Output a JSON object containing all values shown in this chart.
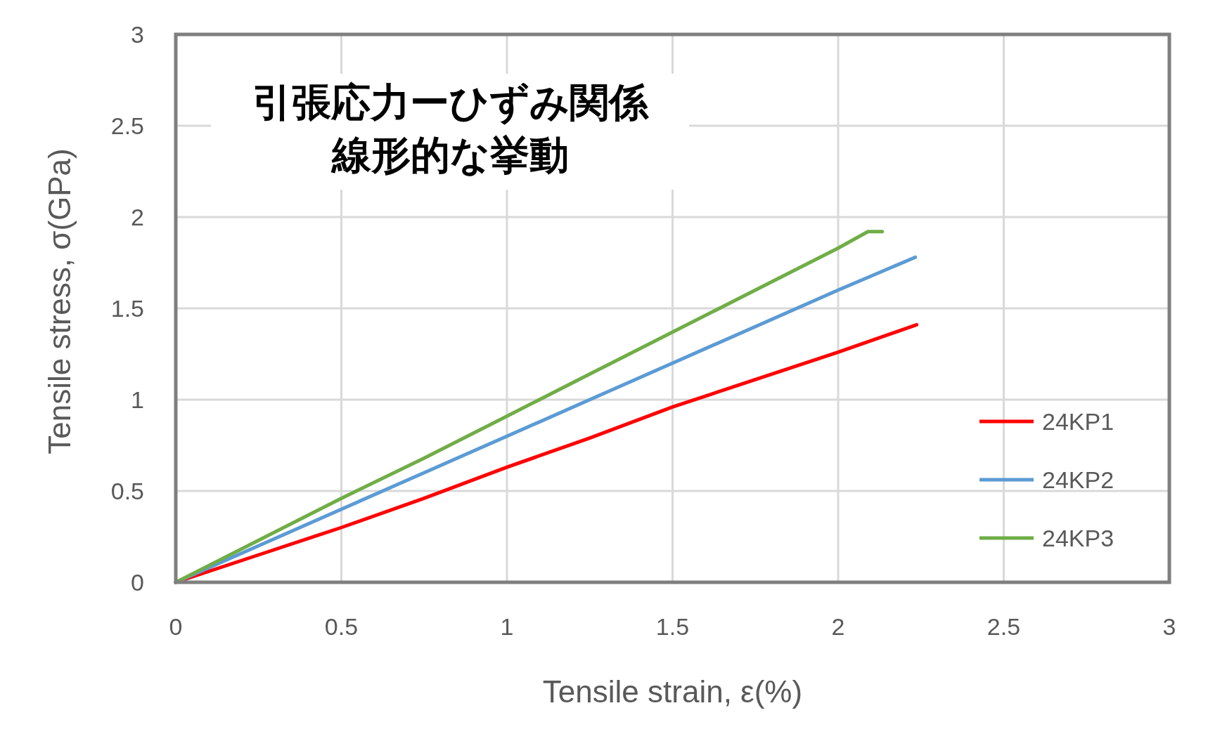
{
  "chart_data": {
    "type": "line",
    "title": "引張応力ーひずみ関係",
    "subtitle": "線形的な挙動",
    "xlabel": "Tensile strain, ε(%)",
    "ylabel": "Tensile stress, σ(GPa)",
    "xlim": [
      0,
      3
    ],
    "ylim": [
      0,
      3
    ],
    "xticks": [
      0,
      0.5,
      1,
      1.5,
      2,
      2.5,
      3
    ],
    "yticks": [
      0,
      0.5,
      1,
      1.5,
      2,
      2.5,
      3
    ],
    "grid": true,
    "legend": "bottom right",
    "series": [
      {
        "name": "24KP1",
        "color": "#ff0000",
        "x": [
          0,
          0.25,
          0.5,
          0.75,
          1,
          1.25,
          1.5,
          1.75,
          2,
          2.237
        ],
        "values": [
          0,
          0.15,
          0.3,
          0.46,
          0.63,
          0.79,
          0.96,
          1.11,
          1.26,
          1.41
        ]
      },
      {
        "name": "24KP2",
        "color": "#5b9bd5",
        "x": [
          0,
          0.25,
          0.5,
          0.75,
          1,
          1.25,
          1.5,
          1.75,
          2,
          2.233
        ],
        "values": [
          0,
          0.2,
          0.4,
          0.6,
          0.8,
          1.0,
          1.2,
          1.4,
          1.6,
          1.78
        ]
      },
      {
        "name": "24KP3",
        "color": "#70ad47",
        "x": [
          0,
          0.25,
          0.5,
          0.75,
          1,
          1.25,
          1.5,
          1.75,
          2,
          2.09,
          2.133
        ],
        "values": [
          0,
          0.23,
          0.46,
          0.68,
          0.91,
          1.14,
          1.37,
          1.6,
          1.83,
          1.92,
          1.92
        ]
      }
    ]
  }
}
